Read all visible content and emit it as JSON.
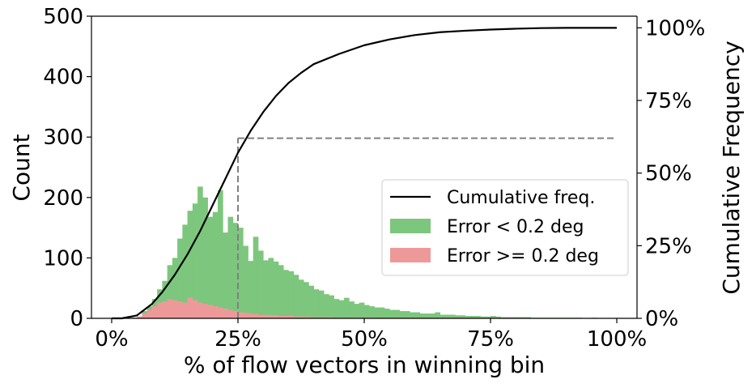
{
  "chart_data": {
    "type": "bar",
    "xlabel": "% of flow vectors in winning bin",
    "ylabel": "Count",
    "y2label": "Cumulative Frequency",
    "xlim": [
      -0.04,
      1.04
    ],
    "ylim": [
      0,
      500
    ],
    "y2lim": [
      0,
      1.04
    ],
    "xticks": [
      {
        "value": 0.0,
        "label": "0%"
      },
      {
        "value": 0.25,
        "label": "25%"
      },
      {
        "value": 0.5,
        "label": "50%"
      },
      {
        "value": 0.75,
        "label": "75%"
      },
      {
        "value": 1.0,
        "label": "100%"
      }
    ],
    "yticks": [
      {
        "value": 0,
        "label": "0"
      },
      {
        "value": 100,
        "label": "100"
      },
      {
        "value": 200,
        "label": "200"
      },
      {
        "value": 300,
        "label": "300"
      },
      {
        "value": 400,
        "label": "400"
      },
      {
        "value": 500,
        "label": "500"
      }
    ],
    "y2ticks": [
      {
        "value": 0.0,
        "label": "0%"
      },
      {
        "value": 0.25,
        "label": "25%"
      },
      {
        "value": 0.5,
        "label": "50%"
      },
      {
        "value": 0.75,
        "label": "75%"
      },
      {
        "value": 1.0,
        "label": "100%"
      }
    ],
    "bin_width": 0.01,
    "legend_position": "center-right",
    "grid": false,
    "series": [
      {
        "name": "Error < 0.2 deg",
        "kind": "histogram",
        "color": "#7dc67d",
        "bin_start": 0.0,
        "values": [
          0,
          0,
          0,
          0,
          1,
          3,
          12,
          20,
          32,
          48,
          62,
          88,
          100,
          132,
          155,
          178,
          190,
          218,
          200,
          168,
          176,
          212,
          142,
          168,
          158,
          150,
          120,
          95,
          135,
          112,
          96,
          100,
          94,
          88,
          80,
          78,
          72,
          64,
          60,
          54,
          48,
          46,
          40,
          38,
          32,
          30,
          34,
          28,
          24,
          26,
          22,
          20,
          18,
          18,
          16,
          14,
          14,
          12,
          12,
          10,
          10,
          8,
          8,
          8,
          10,
          6,
          6,
          6,
          5,
          5,
          4,
          4,
          4,
          3,
          3,
          4,
          3,
          2,
          2,
          2,
          2,
          2,
          2,
          1,
          1,
          1,
          1,
          1,
          1,
          1,
          1,
          1,
          1,
          0,
          0,
          1,
          0,
          0,
          0,
          0
        ]
      },
      {
        "name": "Error >= 0.2 deg",
        "kind": "histogram",
        "color": "#ee9999",
        "bin_start": 0.0,
        "values": [
          0,
          0,
          0,
          0,
          1,
          3,
          8,
          14,
          20,
          26,
          28,
          32,
          30,
          28,
          26,
          34,
          30,
          26,
          24,
          22,
          20,
          18,
          16,
          14,
          12,
          10,
          9,
          8,
          7,
          6,
          6,
          5,
          5,
          4,
          4,
          4,
          3,
          3,
          3,
          2,
          2,
          2,
          2,
          2,
          1,
          1,
          1,
          1,
          1,
          1,
          1,
          1,
          1,
          1,
          1,
          1,
          1,
          1,
          1,
          1,
          1,
          1,
          1,
          1,
          1,
          1,
          1,
          1,
          1,
          1,
          1,
          1,
          1,
          1,
          1,
          1,
          1,
          1,
          1,
          1,
          0,
          0,
          0,
          0,
          0,
          0,
          0,
          0,
          0,
          0,
          0,
          0,
          0,
          0,
          0,
          0,
          0,
          0,
          0,
          0
        ]
      },
      {
        "name": "Cumulative freq.",
        "kind": "line",
        "axis": "right",
        "color": "#000000",
        "x": [
          0.0,
          0.02,
          0.05,
          0.08,
          0.1,
          0.125,
          0.15,
          0.175,
          0.2,
          0.225,
          0.25,
          0.275,
          0.3,
          0.325,
          0.35,
          0.375,
          0.4,
          0.45,
          0.5,
          0.55,
          0.6,
          0.65,
          0.7,
          0.75,
          0.8,
          0.85,
          0.9,
          1.0
        ],
        "y": [
          0.0,
          0.0,
          0.01,
          0.05,
          0.09,
          0.15,
          0.22,
          0.3,
          0.39,
          0.48,
          0.57,
          0.645,
          0.71,
          0.765,
          0.81,
          0.845,
          0.875,
          0.91,
          0.94,
          0.96,
          0.975,
          0.985,
          0.99,
          0.994,
          0.997,
          0.999,
          1.0,
          1.0
        ]
      }
    ],
    "reference_lines": [
      {
        "kind": "dashed",
        "x": 0.25,
        "y_right": 0.62,
        "color": "#808080"
      }
    ],
    "legend": [
      {
        "label": "Cumulative freq.",
        "kind": "line",
        "color": "#000000"
      },
      {
        "label": "Error < 0.2 deg",
        "kind": "patch",
        "color": "#7dc67d"
      },
      {
        "label": "Error >= 0.2 deg",
        "kind": "patch",
        "color": "#ee9999"
      }
    ]
  }
}
